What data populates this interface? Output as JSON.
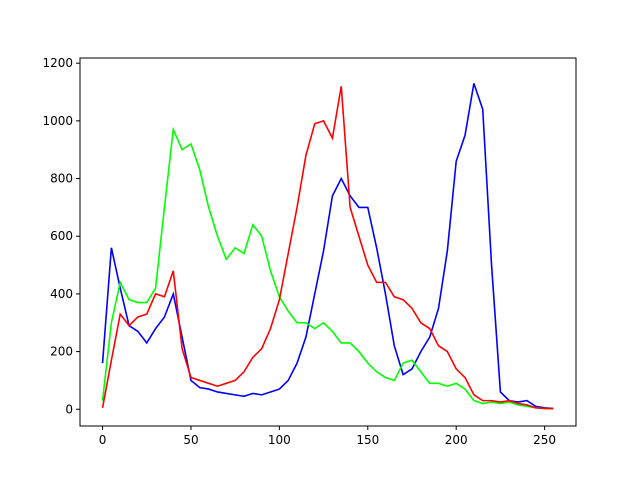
{
  "chart_data": {
    "type": "line",
    "x": [
      0,
      5,
      10,
      15,
      20,
      25,
      30,
      35,
      40,
      45,
      50,
      55,
      60,
      65,
      70,
      75,
      80,
      85,
      90,
      95,
      100,
      105,
      110,
      115,
      120,
      125,
      130,
      135,
      140,
      145,
      150,
      155,
      160,
      165,
      170,
      175,
      180,
      185,
      190,
      195,
      200,
      205,
      210,
      215,
      220,
      225,
      230,
      235,
      240,
      245,
      250,
      255
    ],
    "series": [
      {
        "color": "#0000ff",
        "values": [
          160,
          560,
          420,
          290,
          270,
          230,
          280,
          320,
          400,
          250,
          100,
          75,
          70,
          60,
          55,
          50,
          45,
          55,
          50,
          60,
          70,
          100,
          160,
          250,
          400,
          550,
          740,
          800,
          740,
          700,
          700,
          560,
          400,
          220,
          120,
          140,
          200,
          250,
          350,
          550,
          860,
          950,
          1130,
          1040,
          500,
          60,
          30,
          25,
          30,
          10,
          5,
          3
        ]
      },
      {
        "color": "#00ff00",
        "values": [
          30,
          300,
          440,
          380,
          370,
          370,
          420,
          700,
          970,
          900,
          920,
          830,
          700,
          600,
          520,
          560,
          540,
          640,
          600,
          480,
          390,
          340,
          300,
          300,
          280,
          300,
          270,
          230,
          230,
          200,
          160,
          130,
          110,
          100,
          160,
          170,
          130,
          90,
          90,
          80,
          90,
          70,
          30,
          20,
          25,
          20,
          25,
          15,
          10,
          5,
          3,
          2
        ]
      },
      {
        "color": "#ff0000",
        "values": [
          5,
          170,
          330,
          290,
          320,
          330,
          400,
          390,
          480,
          210,
          110,
          100,
          90,
          80,
          90,
          100,
          130,
          180,
          210,
          280,
          380,
          540,
          700,
          880,
          990,
          1000,
          940,
          1120,
          700,
          600,
          500,
          440,
          440,
          390,
          380,
          350,
          300,
          280,
          220,
          200,
          140,
          110,
          50,
          30,
          30,
          25,
          30,
          20,
          15,
          5,
          3,
          2
        ]
      }
    ],
    "xlim": [
      -12.75,
      267.75
    ],
    "xticks": [
      0,
      50,
      100,
      150,
      200,
      250
    ],
    "ylim": [
      -58,
      1218
    ],
    "yticks": [
      0,
      200,
      400,
      600,
      800,
      1000,
      1200
    ]
  }
}
